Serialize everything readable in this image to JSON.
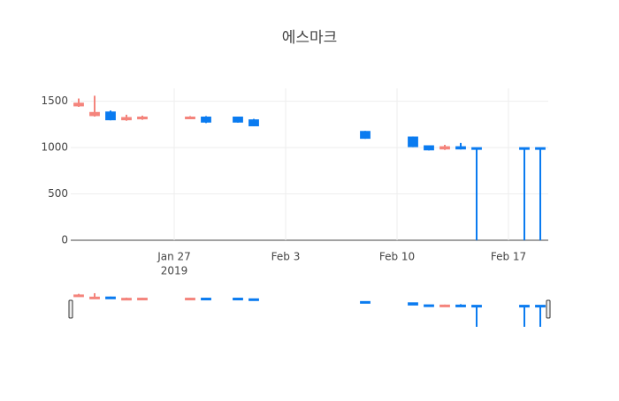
{
  "chart_data": {
    "type": "candlestick",
    "title": "에스마크",
    "x": [
      "2019-01-21",
      "2019-01-22",
      "2019-01-23",
      "2019-01-24",
      "2019-01-25",
      "2019-01-28",
      "2019-01-29",
      "2019-01-31",
      "2019-02-01",
      "2019-02-08",
      "2019-02-11",
      "2019-02-12",
      "2019-02-13",
      "2019-02-14",
      "2019-02-15",
      "2019-02-18",
      "2019-02-19"
    ],
    "open": [
      1450,
      1345,
      1385,
      1300,
      1310,
      1320,
      1330,
      1330,
      1300,
      1175,
      1115,
      1020,
      985,
      1010,
      1000,
      1000,
      1000
    ],
    "high": [
      1530,
      1560,
      1400,
      1355,
      1345,
      1340,
      1340,
      1335,
      1310,
      1180,
      1120,
      1020,
      1030,
      1050,
      1000,
      1000,
      1000
    ],
    "low": [
      1440,
      1335,
      1295,
      1290,
      1300,
      1315,
      1265,
      1270,
      1230,
      1095,
      1005,
      970,
      975,
      980,
      0,
      0,
      0
    ],
    "close": [
      1480,
      1380,
      1300,
      1325,
      1330,
      1330,
      1275,
      1275,
      1235,
      1100,
      1010,
      975,
      1010,
      985,
      995,
      995,
      995
    ],
    "increasing_color": "#f4847c",
    "decreasing_color": "#0a7bf0",
    "xlim": [
      "2019-01-20T12:00:00Z",
      "2019-02-19T12:00:00Z"
    ],
    "xticks": [
      {
        "value": "2019-01-27",
        "label": "Jan 27"
      },
      {
        "value": "2019-02-03",
        "label": "Feb 3"
      },
      {
        "value": "2019-02-10",
        "label": "Feb 10"
      },
      {
        "value": "2019-02-17",
        "label": "Feb 17"
      }
    ],
    "x_year": "2019",
    "ylim": [
      0,
      1640
    ],
    "yticks": [
      0,
      500,
      1000,
      1500
    ],
    "grid": true,
    "rangeslider": true
  }
}
